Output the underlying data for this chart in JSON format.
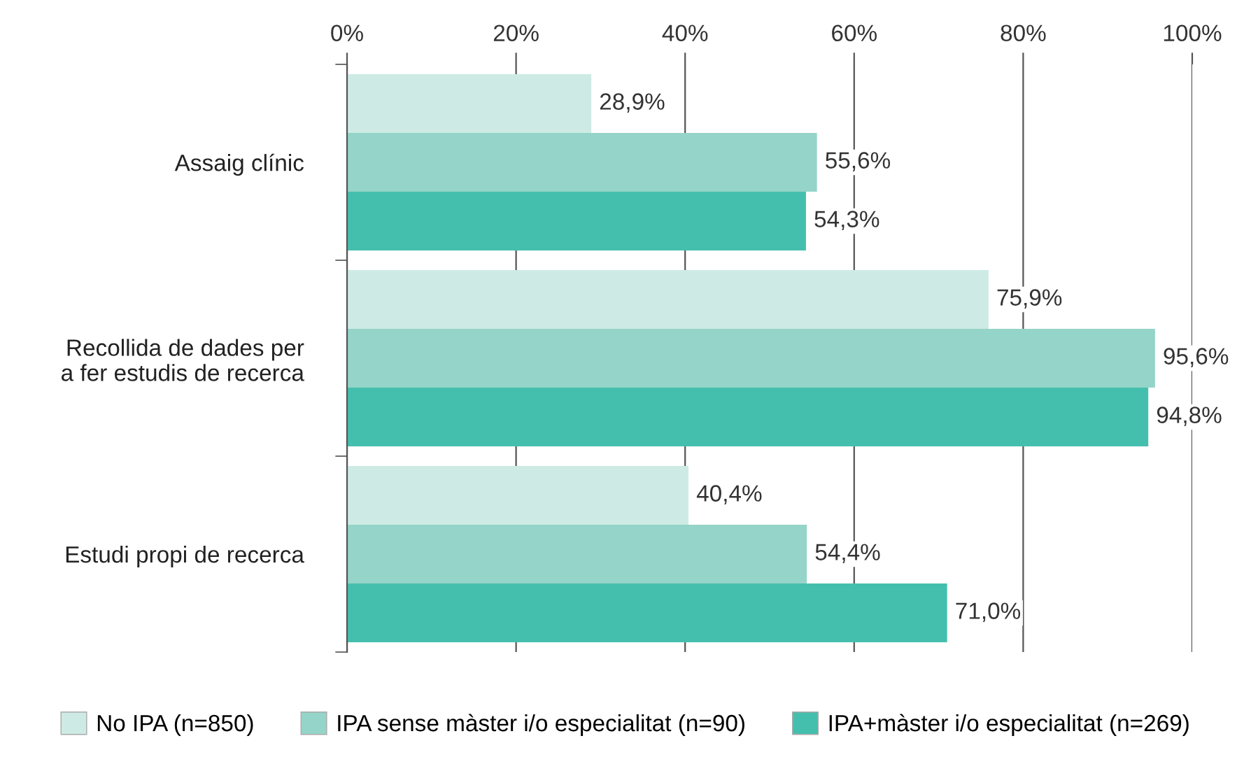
{
  "chart_data": {
    "type": "bar",
    "orientation": "horizontal",
    "categories": [
      "Assaig clínic",
      "Recollida de dades per\na fer estudis de recerca",
      "Estudi propi de recerca"
    ],
    "series": [
      {
        "name": "No IPA (n=850)",
        "color": "#cdebe4",
        "values": [
          28.9,
          75.9,
          40.4
        ],
        "value_labels": [
          "28,9%",
          "75,9%",
          "40,4%"
        ]
      },
      {
        "name": "IPA sense màster i/o especialitat (n=90)",
        "color": "#95d4c8",
        "values": [
          55.6,
          95.6,
          54.4
        ],
        "value_labels": [
          "55,6%",
          "95,6%",
          "54,4%"
        ]
      },
      {
        "name": "IPA+màster i/o especialitat (n=269)",
        "color": "#45bfad",
        "values": [
          54.3,
          94.8,
          71.0
        ],
        "value_labels": [
          "54,3%",
          "94,8%",
          "71,0%"
        ]
      }
    ],
    "xlim": [
      0,
      100
    ],
    "xticks": [
      {
        "value": 0,
        "label": "0%"
      },
      {
        "value": 20,
        "label": "20%"
      },
      {
        "value": 40,
        "label": "40%"
      },
      {
        "value": 60,
        "label": "60%"
      },
      {
        "value": 80,
        "label": "80%"
      },
      {
        "value": 100,
        "label": "100%"
      }
    ],
    "grid": "x",
    "legend": "bottom"
  }
}
